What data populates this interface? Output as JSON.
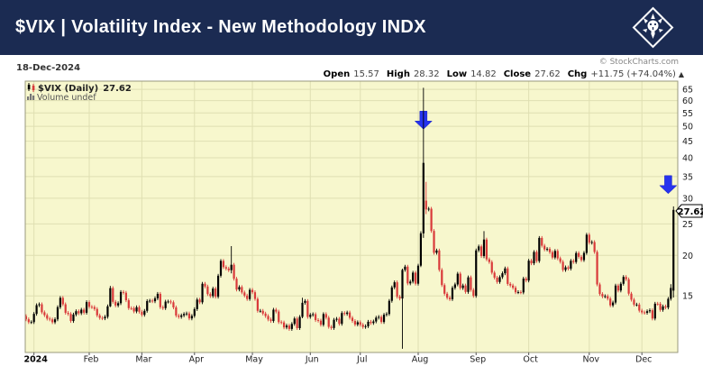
{
  "header": {
    "title": "$VIX | Volatility Index - New Methodology INDX",
    "logo": "stockcharts-lion-emblem"
  },
  "chart": {
    "date_label": "18-Dec-2024",
    "copyright": "© StockCharts.com",
    "ohlc": {
      "open_label": "Open",
      "open": "15.57",
      "high_label": "High",
      "high": "28.32",
      "low_label": "Low",
      "low": "14.82",
      "close_label": "Close",
      "close": "27.62",
      "chg_label": "Chg",
      "chg": "+11.75 (+74.04%)",
      "direction": "▲"
    },
    "legend": {
      "symbol": "$VIX (Daily)",
      "last": "27.62",
      "volume": "Volume undef"
    },
    "price_tag": "27.62",
    "colors": {
      "header_bg": "#1b2b52",
      "plot_bg": "#f7f7cd",
      "grid": "#dfdfb2",
      "plot_border": "#99997d",
      "candle_up": "#000000",
      "candle_down": "#d93a3a",
      "arrow_blue": "#2633ee",
      "tag_bg": "#ffffff",
      "tag_border": "#000000"
    }
  },
  "chart_data": {
    "type": "candlestick",
    "title": "$VIX (Daily)",
    "xlabel": "",
    "ylabel": "",
    "yscale": "log",
    "ylim": [
      10,
      69
    ],
    "grid": true,
    "y_ticks": [
      15,
      20,
      25,
      30,
      35,
      40,
      45,
      50,
      55,
      60,
      65
    ],
    "x_labels": [
      "2024",
      "Feb",
      "Mar",
      "Apr",
      "May",
      "Jun",
      "Jul",
      "Aug",
      "Sep",
      "Oct",
      "Nov",
      "Dec"
    ],
    "month_start_indices": [
      4,
      25,
      45,
      65,
      87,
      109,
      128,
      150,
      172,
      192,
      215,
      235
    ],
    "last_close": 27.62,
    "closes": [
      12.99,
      12.7,
      12.45,
      12.45,
      13.2,
      14.04,
      14.13,
      13.35,
      13.08,
      12.76,
      12.69,
      12.44,
      12.7,
      13.84,
      14.79,
      14.13,
      13.3,
      13.19,
      12.55,
      13.14,
      13.45,
      13.26,
      13.6,
      13.31,
      14.35,
      13.88,
      13.85,
      13.67,
      13.06,
      12.83,
      12.79,
      12.93,
      13.93,
      15.85,
      14.38,
      14.01,
      14.24,
      15.42,
      15.34,
      14.54,
      13.75,
      13.74,
      13.43,
      13.84,
      13.4,
      13.11,
      13.49,
      14.46,
      14.5,
      14.44,
      14.74,
      15.22,
      13.84,
      13.75,
      14.4,
      14.41,
      14.33,
      13.82,
      13.04,
      12.92,
      13.06,
      13.19,
      13.24,
      12.78,
      13.01,
      13.65,
      14.61,
      14.33,
      16.35,
      16.03,
      15.19,
      14.98,
      15.8,
      14.91,
      17.31,
      19.23,
      18.4,
      18.21,
      18.0,
      18.71,
      16.94,
      15.69,
      15.97,
      15.37,
      15.03,
      14.67,
      15.65,
      15.39,
      14.68,
      13.49,
      13.49,
      13.23,
      13.0,
      12.69,
      12.55,
      13.6,
      13.42,
      12.45,
      12.42,
      11.99,
      12.15,
      11.86,
      12.29,
      12.77,
      11.93,
      12.92,
      14.28,
      14.47,
      12.92,
      13.11,
      13.17,
      12.63,
      12.58,
      12.22,
      13.18,
      12.85,
      12.04,
      11.94,
      12.66,
      12.75,
      12.3,
      13.28,
      13.2,
      13.33,
      12.84,
      12.55,
      12.24,
      12.44,
      12.22,
      12.03,
      12.09,
      12.48,
      12.37,
      12.51,
      12.85,
      12.92,
      12.46,
      13.12,
      13.19,
      14.48,
      15.93,
      16.52,
      14.91,
      14.72,
      18.04,
      18.46,
      16.39,
      16.6,
      17.69,
      16.36,
      18.59,
      23.39,
      38.57,
      27.71,
      27.85,
      23.79,
      20.37,
      20.71,
      18.04,
      16.19,
      15.23,
      14.8,
      14.65,
      15.88,
      16.27,
      17.56,
      15.86,
      16.15,
      15.43,
      17.11,
      15.65,
      15.0,
      20.72,
      21.31,
      19.9,
      22.38,
      19.45,
      19.08,
      17.69,
      17.07,
      16.56,
      17.14,
      17.61,
      18.23,
      16.33,
      16.15,
      15.89,
      15.39,
      15.41,
      15.37,
      16.96,
      16.73,
      19.26,
      18.9,
      20.49,
      19.21,
      22.64,
      21.42,
      20.86,
      20.93,
      20.46,
      19.7,
      20.64,
      19.58,
      19.11,
      18.03,
      18.37,
      18.2,
      19.24,
      19.08,
      20.33,
      19.8,
      19.34,
      20.35,
      23.16,
      21.88,
      21.98,
      20.49,
      16.27,
      15.2,
      14.94,
      14.97,
      14.71,
      14.02,
      14.31,
      16.14,
      15.58,
      16.35,
      17.16,
      16.87,
      15.24,
      14.6,
      14.1,
      14.1,
      13.51,
      13.34,
      13.3,
      13.45,
      13.54,
      12.77,
      14.19,
      14.18,
      13.58,
      13.92,
      13.81,
      14.69,
      15.87,
      27.62
    ],
    "ohlc_overrides": {
      "33": [
        13.93,
        16.1,
        13.85,
        15.85
      ],
      "79": [
        18.0,
        21.36,
        17.6,
        18.71
      ],
      "106": [
        12.92,
        14.8,
        12.8,
        14.28
      ],
      "144": [
        14.72,
        18.2,
        10.3,
        18.04
      ],
      "151": [
        18.59,
        23.73,
        18.4,
        23.39
      ],
      "152": [
        23.38,
        65.73,
        22.64,
        38.57
      ],
      "153": [
        29.5,
        33.71,
        26.8,
        27.71
      ],
      "175": [
        19.9,
        23.76,
        19.6,
        22.38
      ],
      "246": [
        14.69,
        16.3,
        14.5,
        15.87
      ],
      "247": [
        15.57,
        28.32,
        14.82,
        27.62
      ]
    },
    "annotations": [
      {
        "type": "arrow-down",
        "index": 152,
        "tip_price": 49
      },
      {
        "type": "arrow-down",
        "index": 245,
        "tip_price": 31
      }
    ]
  }
}
